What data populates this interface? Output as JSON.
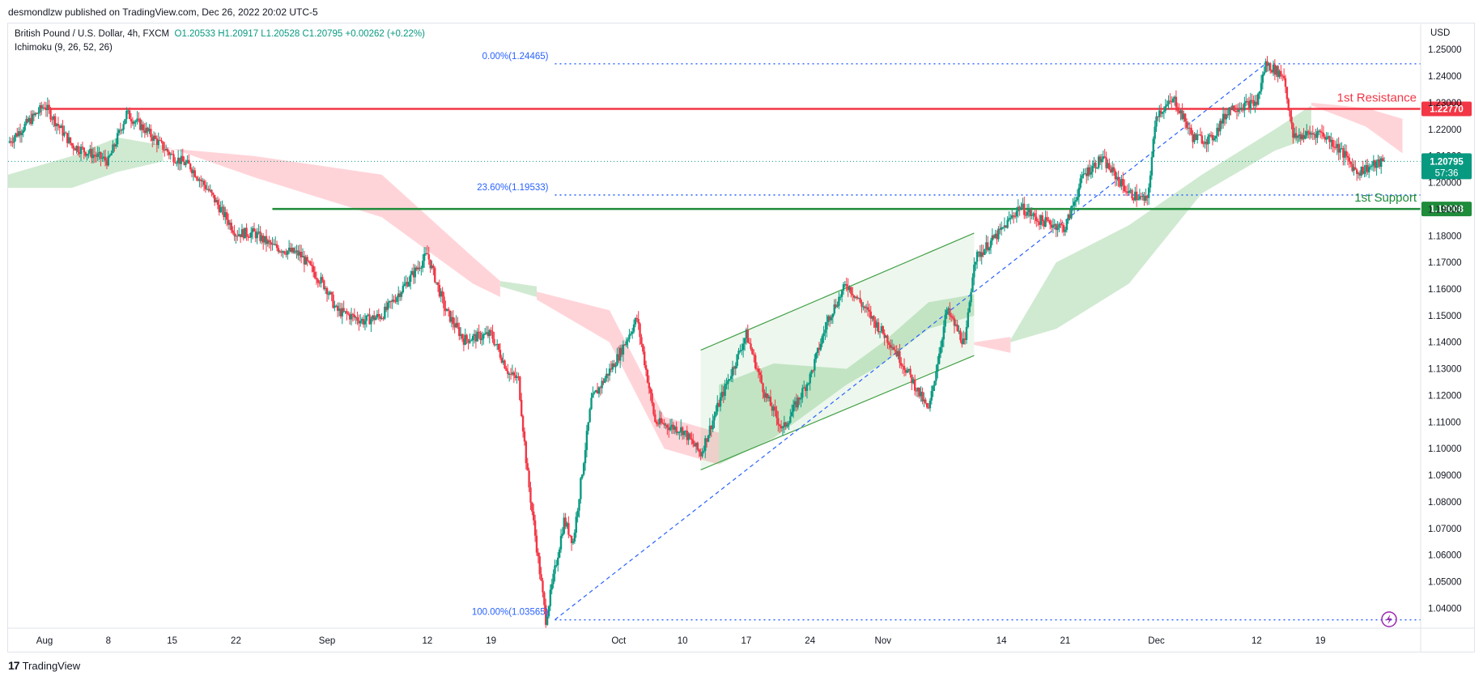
{
  "header": {
    "published": "desmondlzw published on TradingView.com, Dec 26, 2022 20:02 UTC-5"
  },
  "legend": {
    "symbol": "British Pound / U.S. Dollar, 4h, FXCM",
    "ohlc": "O1.20533  H1.20917  L1.20528  C1.20795  +0.00262 (+0.22%)",
    "indicator": "Ichimoku (9, 26, 52, 26)"
  },
  "footer": {
    "brand": "TradingView",
    "logo_glyph": "17"
  },
  "chart_data": {
    "type": "line",
    "title": "British Pound / U.S. Dollar, 4h, FXCM",
    "currency_label": "USD",
    "ylim": [
      1.0325,
      1.2595
    ],
    "x_range": [
      "2022-07-28",
      "2022-12-30"
    ],
    "x_ticks": [
      {
        "date": "2022-08-01",
        "label": "Aug"
      },
      {
        "date": "2022-08-08",
        "label": "8"
      },
      {
        "date": "2022-08-15",
        "label": "15"
      },
      {
        "date": "2022-08-22",
        "label": "22"
      },
      {
        "date": "2022-09-01",
        "label": "Sep"
      },
      {
        "date": "2022-09-12",
        "label": "12"
      },
      {
        "date": "2022-09-19",
        "label": "19"
      },
      {
        "date": "2022-10-03",
        "label": "Oct"
      },
      {
        "date": "2022-10-10",
        "label": "10"
      },
      {
        "date": "2022-10-17",
        "label": "17"
      },
      {
        "date": "2022-10-24",
        "label": "24"
      },
      {
        "date": "2022-11-01",
        "label": "Nov"
      },
      {
        "date": "2022-11-14",
        "label": "14"
      },
      {
        "date": "2022-11-21",
        "label": "21"
      },
      {
        "date": "2022-12-01",
        "label": "Dec"
      },
      {
        "date": "2022-12-12",
        "label": "12"
      },
      {
        "date": "2022-12-19",
        "label": "19"
      }
    ],
    "y_ticks": [
      "1.25000",
      "1.24000",
      "1.23000",
      "1.22000",
      "1.21000",
      "1.20000",
      "1.19000",
      "1.18000",
      "1.17000",
      "1.16000",
      "1.15000",
      "1.14000",
      "1.13000",
      "1.12000",
      "1.11000",
      "1.10000",
      "1.09000",
      "1.08000",
      "1.07000",
      "1.06000",
      "1.05000",
      "1.04000"
    ],
    "price_path": [
      [
        "2022-07-28",
        1.215
      ],
      [
        "2022-08-01",
        1.229
      ],
      [
        "2022-08-04",
        1.214
      ],
      [
        "2022-08-08",
        1.208
      ],
      [
        "2022-08-10",
        1.226
      ],
      [
        "2022-08-12",
        1.22
      ],
      [
        "2022-08-15",
        1.21
      ],
      [
        "2022-08-17",
        1.206
      ],
      [
        "2022-08-19",
        1.197
      ],
      [
        "2022-08-22",
        1.181
      ],
      [
        "2022-08-24",
        1.181
      ],
      [
        "2022-08-26",
        1.176
      ],
      [
        "2022-08-29",
        1.173
      ],
      [
        "2022-09-01",
        1.16
      ],
      [
        "2022-09-02",
        1.152
      ],
      [
        "2022-09-05",
        1.148
      ],
      [
        "2022-09-07",
        1.15
      ],
      [
        "2022-09-09",
        1.159
      ],
      [
        "2022-09-12",
        1.173
      ],
      [
        "2022-09-14",
        1.152
      ],
      [
        "2022-09-16",
        1.141
      ],
      [
        "2022-09-19",
        1.143
      ],
      [
        "2022-09-21",
        1.128
      ],
      [
        "2022-09-22",
        1.126
      ],
      [
        "2022-09-23",
        1.09
      ],
      [
        "2022-09-25",
        1.0357
      ],
      [
        "2022-09-27",
        1.073
      ],
      [
        "2022-09-28",
        1.065
      ],
      [
        "2022-09-30",
        1.118
      ],
      [
        "2022-10-03",
        1.135
      ],
      [
        "2022-10-05",
        1.149
      ],
      [
        "2022-10-07",
        1.11
      ],
      [
        "2022-10-10",
        1.107
      ],
      [
        "2022-10-12",
        1.098
      ],
      [
        "2022-10-14",
        1.117
      ],
      [
        "2022-10-17",
        1.143
      ],
      [
        "2022-10-19",
        1.121
      ],
      [
        "2022-10-21",
        1.107
      ],
      [
        "2022-10-24",
        1.127
      ],
      [
        "2022-10-26",
        1.149
      ],
      [
        "2022-10-28",
        1.162
      ],
      [
        "2022-10-31",
        1.148
      ],
      [
        "2022-11-02",
        1.139
      ],
      [
        "2022-11-04",
        1.127
      ],
      [
        "2022-11-06",
        1.114
      ],
      [
        "2022-11-08",
        1.152
      ],
      [
        "2022-11-10",
        1.139
      ],
      [
        "2022-11-11",
        1.171
      ],
      [
        "2022-11-14",
        1.182
      ],
      [
        "2022-11-16",
        1.191
      ],
      [
        "2022-11-18",
        1.186
      ],
      [
        "2022-11-21",
        1.183
      ],
      [
        "2022-11-23",
        1.203
      ],
      [
        "2022-11-25",
        1.209
      ],
      [
        "2022-11-28",
        1.196
      ],
      [
        "2022-11-30",
        1.193
      ],
      [
        "2022-12-01",
        1.226
      ],
      [
        "2022-12-03",
        1.231
      ],
      [
        "2022-12-05",
        1.217
      ],
      [
        "2022-12-07",
        1.216
      ],
      [
        "2022-12-09",
        1.228
      ],
      [
        "2022-12-12",
        1.23
      ],
      [
        "2022-12-13",
        1.2447
      ],
      [
        "2022-12-15",
        1.24
      ],
      [
        "2022-12-16",
        1.217
      ],
      [
        "2022-12-19",
        1.219
      ],
      [
        "2022-12-21",
        1.213
      ],
      [
        "2022-12-23",
        1.204
      ],
      [
        "2022-12-26",
        1.20795
      ]
    ],
    "cloud": [
      {
        "sign": "bull",
        "points": [
          [
            "2022-07-28",
            1.203,
            1.198
          ],
          [
            "2022-08-04",
            1.21,
            1.198
          ],
          [
            "2022-08-09",
            1.217,
            1.204
          ],
          [
            "2022-08-14",
            1.214,
            1.208
          ]
        ]
      },
      {
        "sign": "bear",
        "points": [
          [
            "2022-08-14",
            1.214,
            1.213
          ],
          [
            "2022-08-24",
            1.202,
            1.21
          ],
          [
            "2022-09-07",
            1.187,
            1.203
          ],
          [
            "2022-09-17",
            1.162,
            1.172
          ],
          [
            "2022-09-20",
            1.157,
            1.163
          ]
        ]
      },
      {
        "sign": "bull",
        "points": [
          [
            "2022-09-20",
            1.163,
            1.161
          ],
          [
            "2022-09-24",
            1.161,
            1.157
          ]
        ]
      },
      {
        "sign": "bear",
        "points": [
          [
            "2022-09-24",
            1.156,
            1.159
          ],
          [
            "2022-10-02",
            1.14,
            1.152
          ],
          [
            "2022-10-08",
            1.1,
            1.112
          ],
          [
            "2022-10-14",
            1.094,
            1.106
          ]
        ]
      },
      {
        "sign": "bull",
        "points": [
          [
            "2022-10-14",
            1.094,
            1.124
          ],
          [
            "2022-10-20",
            1.104,
            1.132
          ],
          [
            "2022-10-28",
            1.124,
            1.13
          ],
          [
            "2022-11-01",
            1.132,
            1.14
          ],
          [
            "2022-11-06",
            1.145,
            1.155
          ],
          [
            "2022-11-11",
            1.15,
            1.158
          ]
        ]
      },
      {
        "sign": "bear",
        "points": [
          [
            "2022-11-11",
            1.139,
            1.14
          ],
          [
            "2022-11-15",
            1.136,
            1.142
          ]
        ]
      },
      {
        "sign": "bull",
        "points": [
          [
            "2022-11-15",
            1.14,
            1.141
          ],
          [
            "2022-11-20",
            1.145,
            1.17
          ],
          [
            "2022-11-28",
            1.162,
            1.184
          ],
          [
            "2022-12-06",
            1.196,
            1.203
          ],
          [
            "2022-12-14",
            1.212,
            1.22
          ],
          [
            "2022-12-18",
            1.217,
            1.229
          ]
        ]
      },
      {
        "sign": "bear",
        "points": [
          [
            "2022-12-18",
            1.229,
            1.23
          ],
          [
            "2022-12-24",
            1.221,
            1.228
          ],
          [
            "2022-12-28",
            1.211,
            1.224
          ]
        ]
      }
    ],
    "levels": [
      {
        "name": "1st Resistance",
        "price": 1.2277,
        "label": "1.22770",
        "color": "#f23645"
      },
      {
        "name": "1st Support",
        "price": 1.19008,
        "label": "1.19008",
        "color": "#1e8c3a"
      }
    ],
    "fib_levels": [
      {
        "label": "0.00%(1.24465)",
        "price": 1.24465
      },
      {
        "label": "23.60%(1.19533)",
        "price": 1.19533
      },
      {
        "label": "100.00%(1.03565)",
        "price": 1.03565
      }
    ],
    "trend_line": [
      [
        "2022-09-26",
        1.0357
      ],
      [
        "2022-12-13",
        1.2447
      ]
    ],
    "channel": {
      "upper": [
        [
          "2022-10-12",
          1.137
        ],
        [
          "2022-11-11",
          1.181
        ]
      ],
      "lower": [
        [
          "2022-10-12",
          1.092
        ],
        [
          "2022-11-11",
          1.135
        ]
      ]
    },
    "last_price": {
      "label": "1.20795",
      "countdown": "57:36",
      "price": 1.20795,
      "color": "#089981"
    },
    "colors": {
      "up": "#089981",
      "down": "#f23645",
      "cloud_bull": "#c8e6c9",
      "cloud_bear": "#ffcdd2",
      "fib": "#2962ff"
    }
  }
}
